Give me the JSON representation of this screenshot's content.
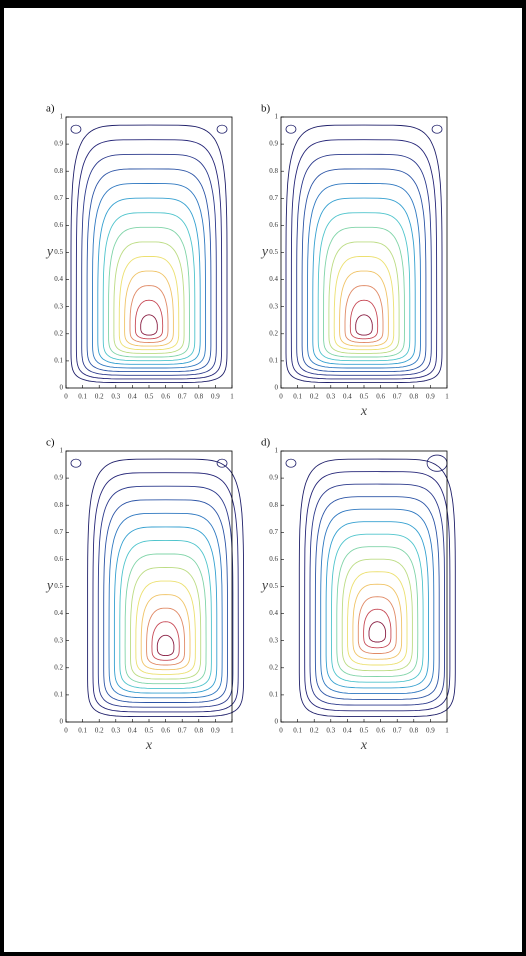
{
  "panels": [
    {
      "label": "a)",
      "ylabel": "y"
    },
    {
      "label": "b)",
      "ylabel": "y",
      "xlabel": "x"
    },
    {
      "label": "c)",
      "ylabel": "y",
      "xlabel": "x"
    },
    {
      "label": "d)",
      "ylabel": "y",
      "xlabel": "x"
    }
  ],
  "ticks": [
    "0",
    "0.1",
    "0.2",
    "0.3",
    "0.4",
    "0.5",
    "0.6",
    "0.7",
    "0.8",
    "0.9",
    "1"
  ]
}
